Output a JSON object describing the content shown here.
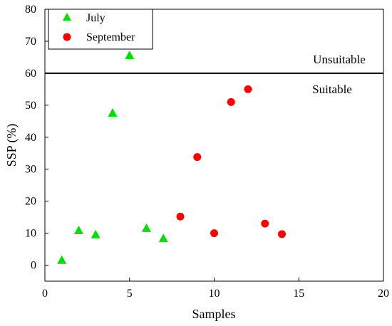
{
  "chart_data": {
    "type": "scatter",
    "xlabel": "Samples",
    "ylabel": "SSP (%)",
    "xlim": [
      0,
      20
    ],
    "ylim": [
      -5,
      80
    ],
    "xticks": [
      0,
      5,
      10,
      15,
      20
    ],
    "yticks": [
      0,
      10,
      20,
      30,
      40,
      50,
      60,
      70,
      80
    ],
    "grid": false,
    "legend_position": "top-left",
    "series": [
      {
        "name": "July",
        "marker": "triangle",
        "color": "#00e000",
        "points": [
          [
            1,
            1.5
          ],
          [
            2,
            10.8
          ],
          [
            3,
            9.5
          ],
          [
            4,
            47.5
          ],
          [
            5,
            65.5
          ],
          [
            6,
            11.5
          ],
          [
            7,
            8.3
          ]
        ]
      },
      {
        "name": "September",
        "marker": "circle",
        "color": "#ff0000",
        "points": [
          [
            8,
            15.2
          ],
          [
            9,
            33.8
          ],
          [
            10,
            10
          ],
          [
            11,
            51
          ],
          [
            12,
            55
          ],
          [
            13,
            13
          ],
          [
            14,
            9.7
          ]
        ]
      }
    ],
    "threshold": {
      "y": 60,
      "label_above": "Unsuitable",
      "label_below": "Suitable"
    }
  }
}
